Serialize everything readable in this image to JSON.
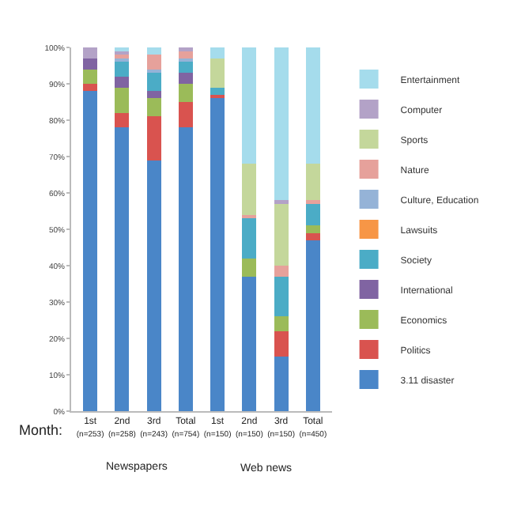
{
  "chart_data": {
    "type": "bar",
    "stacked": true,
    "categories": [
      "1st\n(n=253)",
      "2nd\n(n=258)",
      "3rd\n(n=243)",
      "Total\n(n=754)",
      "1st\n(n=150)",
      "2nd\n(n=150)",
      "3rd\n(n=150)",
      "Total\n(n=450)"
    ],
    "series": [
      {
        "name": "3.11 disaster",
        "color": "#4a86c8",
        "values": [
          88,
          78,
          69,
          78,
          86,
          37,
          15,
          47
        ]
      },
      {
        "name": "Politics",
        "color": "#d9534f",
        "values": [
          2,
          4,
          12,
          7,
          1,
          0,
          7,
          2
        ]
      },
      {
        "name": "Economics",
        "color": "#9bbb59",
        "values": [
          4,
          7,
          5,
          5,
          0,
          5,
          4,
          2
        ]
      },
      {
        "name": "International",
        "color": "#8064a2",
        "values": [
          3,
          3,
          2,
          3,
          0,
          0,
          0,
          0
        ]
      },
      {
        "name": "Society",
        "color": "#4bacc6",
        "values": [
          0,
          4,
          5,
          3,
          2,
          11,
          11,
          6
        ]
      },
      {
        "name": "Lawsuits",
        "color": "#f79646",
        "values": [
          0,
          0,
          0,
          0,
          0,
          0,
          0,
          0
        ]
      },
      {
        "name": "Culture, Education",
        "color": "#95b3d7",
        "values": [
          0,
          1,
          1,
          1,
          0,
          0,
          0,
          0
        ]
      },
      {
        "name": "Nature",
        "color": "#e6a19b",
        "values": [
          0,
          1,
          4,
          2,
          0,
          1,
          3,
          1
        ]
      },
      {
        "name": "Sports",
        "color": "#c4d79b",
        "values": [
          0,
          0,
          0,
          0,
          8,
          14,
          17,
          10
        ]
      },
      {
        "name": "Computer",
        "color": "#b3a2c7",
        "values": [
          3,
          1,
          0,
          1,
          0,
          0,
          1,
          0
        ]
      },
      {
        "name": "Entertainment",
        "color": "#a5dcec",
        "values": [
          0,
          1,
          2,
          0,
          3,
          32,
          42,
          32
        ]
      }
    ],
    "ylim": [
      0,
      100
    ],
    "yticks": [
      {
        "value": 0,
        "label": "0%"
      },
      {
        "value": 10,
        "label": "10%"
      },
      {
        "value": 20,
        "label": "20%"
      },
      {
        "value": 30,
        "label": "30%"
      },
      {
        "value": 40,
        "label": "40%"
      },
      {
        "value": 50,
        "label": "50%"
      },
      {
        "value": 60,
        "label": "60%"
      },
      {
        "value": 70,
        "label": "70%"
      },
      {
        "value": 80,
        "label": "80%"
      },
      {
        "value": 90,
        "label": "90%"
      },
      {
        "value": 100,
        "label": "100%"
      }
    ],
    "grid": false,
    "legend": "right",
    "annotations": [
      "Month:",
      "Newspapers",
      "Web news"
    ]
  }
}
